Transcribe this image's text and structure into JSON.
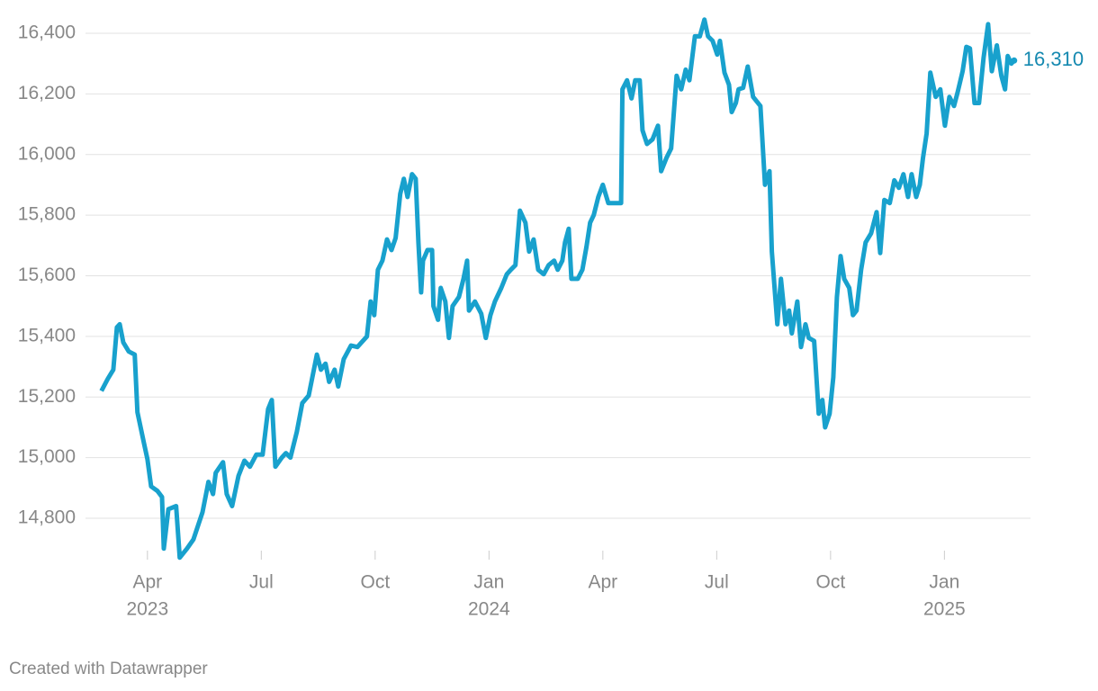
{
  "chart_data": {
    "type": "line",
    "credit": "Created with Datawrapper",
    "x": [
      2023.149,
      2023.163,
      2023.175,
      2023.183,
      2023.189,
      2023.197,
      2023.209,
      2023.222,
      2023.228,
      2023.242,
      2023.25,
      2023.258,
      2023.272,
      2023.282,
      2023.286,
      2023.296,
      2023.313,
      2023.321,
      2023.337,
      2023.351,
      2023.371,
      2023.384,
      2023.394,
      2023.4,
      2023.416,
      2023.424,
      2023.436,
      2023.45,
      2023.463,
      2023.475,
      2023.489,
      2023.503,
      2023.515,
      2023.523,
      2023.531,
      2023.545,
      2023.554,
      2023.564,
      2023.578,
      2023.59,
      2023.604,
      2023.622,
      2023.631,
      2023.641,
      2023.649,
      2023.661,
      2023.669,
      2023.681,
      2023.697,
      2023.711,
      2023.72,
      2023.732,
      2023.74,
      2023.748,
      2023.756,
      2023.766,
      2023.776,
      2023.786,
      2023.795,
      2023.805,
      2023.813,
      2023.821,
      2023.831,
      2023.839,
      2023.845,
      2023.851,
      2023.855,
      2023.865,
      2023.875,
      2023.878,
      2023.888,
      2023.894,
      2023.904,
      2023.912,
      2023.92,
      2023.934,
      2023.944,
      2023.952,
      2023.956,
      2023.969,
      2023.983,
      2023.993,
      2024.003,
      2024.013,
      2024.027,
      2024.039,
      2024.048,
      2024.058,
      2024.068,
      2024.08,
      2024.088,
      2024.098,
      2024.108,
      2024.12,
      2024.131,
      2024.143,
      2024.151,
      2024.161,
      2024.167,
      2024.175,
      2024.181,
      2024.195,
      2024.205,
      2024.214,
      2024.222,
      2024.23,
      2024.24,
      2024.25,
      2024.262,
      2024.28,
      2024.29,
      2024.293,
      2024.303,
      2024.313,
      2024.321,
      2024.331,
      2024.337,
      2024.347,
      2024.359,
      2024.371,
      2024.378,
      2024.39,
      2024.4,
      2024.412,
      2024.422,
      2024.432,
      2024.44,
      2024.452,
      2024.463,
      2024.473,
      2024.481,
      2024.491,
      2024.501,
      2024.507,
      2024.517,
      2024.527,
      2024.533,
      2024.542,
      2024.548,
      2024.558,
      2024.568,
      2024.58,
      2024.596,
      2024.606,
      2024.616,
      2024.621,
      2024.633,
      2024.641,
      2024.651,
      2024.659,
      2024.665,
      2024.677,
      2024.685,
      2024.695,
      2024.702,
      2024.714,
      2024.724,
      2024.732,
      2024.738,
      2024.748,
      2024.756,
      2024.764,
      2024.772,
      2024.78,
      2024.791,
      2024.799,
      2024.807,
      2024.817,
      2024.827,
      2024.839,
      2024.851,
      2024.859,
      2024.868,
      2024.88,
      2024.89,
      2024.9,
      2024.91,
      2024.92,
      2024.928,
      2024.938,
      2024.946,
      2024.953,
      2024.961,
      2024.969,
      2024.981,
      2024.991,
      2025.001,
      2025.011,
      2025.021,
      2025.029,
      2025.04,
      2025.048,
      2025.056,
      2025.066,
      2025.076,
      2025.086,
      2025.096,
      2025.104,
      2025.115,
      2025.125,
      2025.133,
      2025.139,
      2025.147,
      2025.153
    ],
    "series": [
      {
        "color": "#18a1cd",
        "values": [
          15220,
          15260,
          15290,
          15430,
          15440,
          15380,
          15350,
          15340,
          15150,
          15050,
          14995,
          14905,
          14890,
          14870,
          14700,
          14830,
          14840,
          14670,
          14700,
          14730,
          14820,
          14920,
          14880,
          14950,
          14985,
          14880,
          14840,
          14940,
          14990,
          14970,
          15010,
          15010,
          15160,
          15190,
          14970,
          15000,
          15015,
          15000,
          15085,
          15180,
          15205,
          15340,
          15290,
          15310,
          15250,
          15290,
          15235,
          15325,
          15370,
          15365,
          15380,
          15400,
          15515,
          15470,
          15620,
          15650,
          15720,
          15685,
          15725,
          15870,
          15920,
          15860,
          15935,
          15920,
          15710,
          15545,
          15650,
          15685,
          15685,
          15500,
          15455,
          15560,
          15515,
          15395,
          15500,
          15530,
          15590,
          15650,
          15485,
          15515,
          15475,
          15395,
          15470,
          15515,
          15560,
          15605,
          15620,
          15635,
          15815,
          15775,
          15680,
          15720,
          15620,
          15605,
          15635,
          15650,
          15620,
          15650,
          15710,
          15755,
          15590,
          15590,
          15620,
          15695,
          15775,
          15800,
          15860,
          15900,
          15840,
          15840,
          15840,
          16215,
          16245,
          16185,
          16245,
          16245,
          16080,
          16035,
          16050,
          16095,
          15945,
          15990,
          16020,
          16260,
          16215,
          16280,
          16245,
          16390,
          16390,
          16445,
          16390,
          16375,
          16330,
          16375,
          16270,
          16230,
          16140,
          16170,
          16215,
          16220,
          16290,
          16190,
          16160,
          15900,
          15945,
          15680,
          15440,
          15590,
          15440,
          15485,
          15410,
          15515,
          15365,
          15440,
          15395,
          15385,
          15145,
          15190,
          15100,
          15145,
          15265,
          15530,
          15665,
          15590,
          15560,
          15470,
          15485,
          15620,
          15710,
          15740,
          15810,
          15675,
          15850,
          15840,
          15915,
          15890,
          15935,
          15860,
          15935,
          15860,
          15900,
          15990,
          16070,
          16270,
          16190,
          16215,
          16095,
          16190,
          16160,
          16205,
          16275,
          16355,
          16350,
          16170,
          16170,
          16320,
          16430,
          16275,
          16360,
          16260,
          16215,
          16325,
          16300,
          16310
        ]
      }
    ],
    "last_value_label": "16,310",
    "label_color": "#1589b0",
    "xlim": [
      2023.114,
      2025.189
    ],
    "xticks": [
      {
        "value": 2023.25,
        "label": "Apr"
      },
      {
        "value": 2023.5,
        "label": "Jul"
      },
      {
        "value": 2023.75,
        "label": "Oct"
      },
      {
        "value": 2024.0,
        "label": "Jan"
      },
      {
        "value": 2024.25,
        "label": "Apr"
      },
      {
        "value": 2024.5,
        "label": "Jul"
      },
      {
        "value": 2024.75,
        "label": "Oct"
      },
      {
        "value": 2025.0,
        "label": "Jan"
      }
    ],
    "xticks_years": [
      {
        "value": 2023.25,
        "label": "2023"
      },
      {
        "value": 2024.0,
        "label": "2024"
      },
      {
        "value": 2025.0,
        "label": "2025"
      }
    ],
    "ylim": [
      14600,
      16500
    ],
    "yticks": [
      {
        "value": 14800,
        "label": "14,800"
      },
      {
        "value": 15000,
        "label": "15,000"
      },
      {
        "value": 15200,
        "label": "15,200"
      },
      {
        "value": 15400,
        "label": "15,400"
      },
      {
        "value": 15600,
        "label": "15,600"
      },
      {
        "value": 15800,
        "label": "15,800"
      },
      {
        "value": 16000,
        "label": "16,000"
      },
      {
        "value": 16200,
        "label": "16,200"
      },
      {
        "value": 16400,
        "label": "16,400"
      }
    ],
    "grid": true
  }
}
